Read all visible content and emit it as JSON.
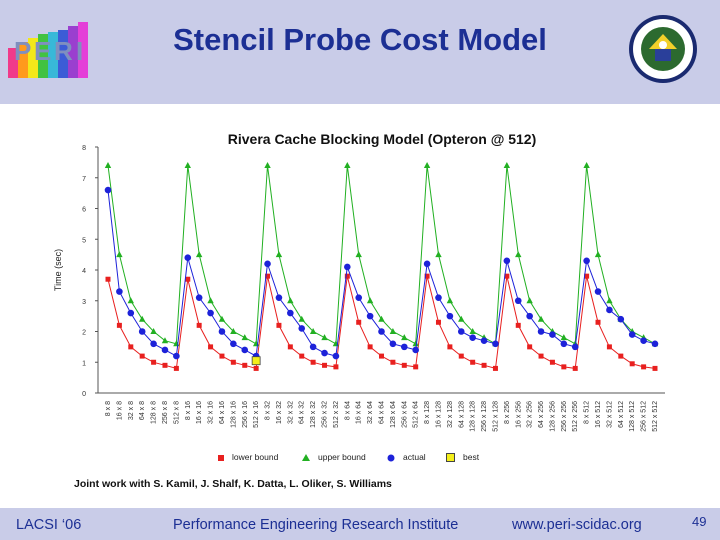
{
  "header": {
    "title": "Stencil Probe Cost Model",
    "logo_letters": [
      "P",
      "E",
      "R",
      "I"
    ]
  },
  "seal": {
    "label_top": "DEPARTMENT OF ENERGY",
    "label_bottom": "UNITED STATES OF AMERICA"
  },
  "credit": "Joint work with S. Kamil, J. Shalf, K. Datta, L. Oliker, S. Williams",
  "footer": {
    "left": "LACSI ‘06",
    "center": "Performance Engineering Research Institute",
    "url": "www.peri-scidac.org",
    "page": "49"
  },
  "colors": {
    "header_band": "#c9cce8",
    "title": "#1c2f94",
    "lower": "#e8201f",
    "upper": "#22b022",
    "actual": "#1d22d9",
    "best": "#f4ef1a"
  },
  "chart_data": {
    "type": "line",
    "title": "Rivera Cache Blocking Model (Opteron @ 512)",
    "xlabel": "",
    "ylabel": "Time (sec)",
    "ylim": [
      0,
      8
    ],
    "yticks": [
      0,
      1,
      2,
      3,
      4,
      5,
      6,
      7,
      8
    ],
    "grid": false,
    "legend_position": "bottom",
    "categories": [
      "8 x 8",
      "16 x 8",
      "32 x 8",
      "64 x 8",
      "128 x 8",
      "256 x 8",
      "512 x 8",
      "8 x 16",
      "16 x 16",
      "32 x 16",
      "64 x 16",
      "128 x 16",
      "256 x 16",
      "512 x 16",
      "8 x 32",
      "16 x 32",
      "32 x 32",
      "64 x 32",
      "128 x 32",
      "256 x 32",
      "512 x 32",
      "8 x 64",
      "16 x 64",
      "32 x 64",
      "64 x 64",
      "128 x 64",
      "256 x 64",
      "512 x 64",
      "8 x 128",
      "16 x 128",
      "32 x 128",
      "64 x 128",
      "128 x 128",
      "256 x 128",
      "512 x 128",
      "8 x 256",
      "16 x 256",
      "32 x 256",
      "64 x 256",
      "128 x 256",
      "256 x 256",
      "512 x 256",
      "8 x 512",
      "16 x 512",
      "32 x 512",
      "64 x 512",
      "128 x 512",
      "256 x 512",
      "512 x 512"
    ],
    "series": [
      {
        "name": "lower bound",
        "marker": "square",
        "values": [
          3.7,
          2.2,
          1.5,
          1.2,
          1.0,
          0.9,
          0.8,
          3.7,
          2.2,
          1.5,
          1.2,
          1.0,
          0.9,
          0.8,
          3.8,
          2.2,
          1.5,
          1.2,
          1.0,
          0.9,
          0.85,
          3.8,
          2.3,
          1.5,
          1.2,
          1.0,
          0.9,
          0.85,
          3.8,
          2.3,
          1.5,
          1.2,
          1.0,
          0.9,
          0.8,
          3.8,
          2.2,
          1.5,
          1.2,
          1.0,
          0.85,
          0.8,
          3.8,
          2.3,
          1.5,
          1.2,
          0.95,
          0.85,
          0.8
        ]
      },
      {
        "name": "upper bound",
        "marker": "triangle",
        "values": [
          7.4,
          4.5,
          3.0,
          2.4,
          2.0,
          1.7,
          1.6,
          7.4,
          4.5,
          3.0,
          2.4,
          2.0,
          1.8,
          1.6,
          7.4,
          4.5,
          3.0,
          2.4,
          2.0,
          1.8,
          1.6,
          7.4,
          4.5,
          3.0,
          2.4,
          2.0,
          1.8,
          1.6,
          7.4,
          4.5,
          3.0,
          2.4,
          2.0,
          1.8,
          1.6,
          7.4,
          4.5,
          3.0,
          2.4,
          2.0,
          1.8,
          1.6,
          7.4,
          4.5,
          3.0,
          2.4,
          2.0,
          1.8,
          1.6
        ]
      },
      {
        "name": "actual",
        "marker": "circle",
        "values": [
          6.6,
          3.3,
          2.6,
          2.0,
          1.6,
          1.4,
          1.2,
          4.4,
          3.1,
          2.6,
          2.0,
          1.6,
          1.4,
          1.2,
          4.2,
          3.1,
          2.6,
          2.1,
          1.5,
          1.3,
          1.2,
          4.1,
          3.1,
          2.5,
          2.0,
          1.6,
          1.5,
          1.4,
          4.2,
          3.1,
          2.5,
          2.0,
          1.8,
          1.7,
          1.6,
          4.3,
          3.0,
          2.5,
          2.0,
          1.9,
          1.6,
          1.5,
          4.3,
          3.3,
          2.7,
          2.4,
          1.9,
          1.7,
          1.6
        ]
      },
      {
        "name": "best",
        "marker": "square-yellow",
        "points": [
          {
            "category": "512 x 16",
            "value": 1.05
          }
        ]
      }
    ]
  }
}
